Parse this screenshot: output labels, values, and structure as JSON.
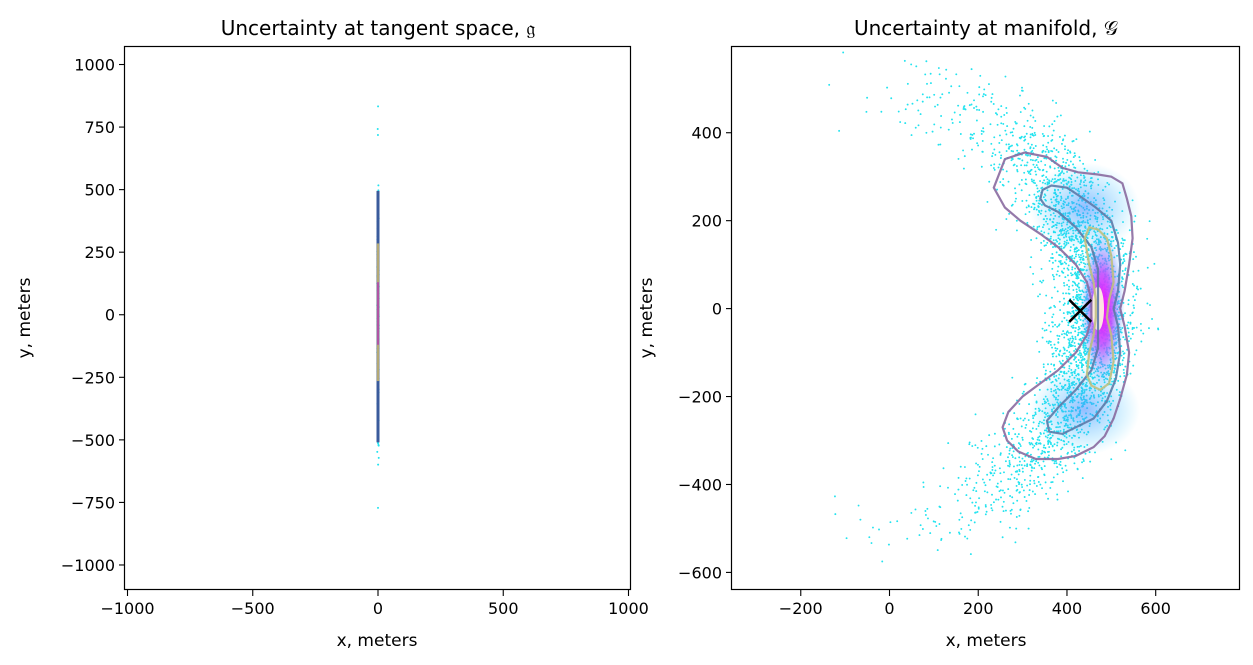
{
  "chart_data": [
    {
      "type": "scatter",
      "title": "Uncertainty at tangent space, 𝔤",
      "xlabel": "x, meters",
      "ylabel": "y, meters",
      "xlim": [
        -1010,
        1010
      ],
      "ylim": [
        -1100,
        1070
      ],
      "xticks": [
        -1000,
        -500,
        0,
        500,
        1000
      ],
      "yticks": [
        -1000,
        -750,
        -500,
        -250,
        0,
        250,
        500,
        750,
        1000
      ],
      "xtick_labels": [
        "−1000",
        "−500",
        "0",
        "500",
        "1000"
      ],
      "ytick_labels": [
        "−1000",
        "−750",
        "−500",
        "−250",
        "0",
        "250",
        "500",
        "750",
        "1000"
      ],
      "grid": false,
      "series": [
        {
          "kind": "scatter",
          "x": 0,
          "y_range": [
            -960,
            930
          ],
          "color": "#22e3ef"
        },
        {
          "kind": "density-contour",
          "x": 0,
          "y_extent": [
            -510,
            495
          ],
          "color": "#3a5b9c"
        },
        {
          "kind": "density-contour",
          "x": 0,
          "y_extent": [
            -265,
            285
          ],
          "color": "#b3a875"
        },
        {
          "kind": "density-core",
          "x": 0,
          "y_extent": [
            -120,
            130
          ],
          "color": "#b040b0"
        }
      ]
    },
    {
      "type": "scatter",
      "title": "Uncertainty at manifold, 𝒢",
      "xlabel": "x, meters",
      "ylabel": "y, meters",
      "xlim": [
        -355,
        790
      ],
      "ylim": [
        -640,
        595
      ],
      "xticks": [
        -200,
        0,
        200,
        400,
        600
      ],
      "yticks": [
        -600,
        -400,
        -200,
        0,
        200,
        400
      ],
      "xtick_labels": [
        "−200",
        "0",
        "200",
        "400",
        "600"
      ],
      "ytick_labels": [
        "−600",
        "−400",
        "−200",
        "0",
        "200",
        "400"
      ],
      "grid": false,
      "marker": {
        "symbol": "x",
        "x": 430,
        "y": -5,
        "color": "#000000"
      },
      "scatter_shape": "crescent",
      "scatter_color": "#22e3ef",
      "contours": [
        {
          "level": "outer",
          "color": "#8a6aa0",
          "points": [
            [
              235,
              275
            ],
            [
              260,
              340
            ],
            [
              305,
              355
            ],
            [
              355,
              345
            ],
            [
              390,
              320
            ],
            [
              425,
              310
            ],
            [
              470,
              305
            ],
            [
              500,
              300
            ],
            [
              525,
              285
            ],
            [
              535,
              250
            ],
            [
              545,
              210
            ],
            [
              548,
              160
            ],
            [
              540,
              100
            ],
            [
              530,
              40
            ],
            [
              520,
              0
            ],
            [
              530,
              -40
            ],
            [
              540,
              -100
            ],
            [
              535,
              -150
            ],
            [
              520,
              -205
            ],
            [
              505,
              -250
            ],
            [
              485,
              -290
            ],
            [
              460,
              -315
            ],
            [
              420,
              -335
            ],
            [
              380,
              -342
            ],
            [
              330,
              -342
            ],
            [
              290,
              -325
            ],
            [
              265,
              -300
            ],
            [
              255,
              -270
            ],
            [
              268,
              -235
            ],
            [
              300,
              -200
            ],
            [
              340,
              -170
            ],
            [
              380,
              -140
            ],
            [
              420,
              -100
            ],
            [
              445,
              -60
            ],
            [
              455,
              -20
            ],
            [
              455,
              20
            ],
            [
              445,
              60
            ],
            [
              420,
              100
            ],
            [
              380,
              140
            ],
            [
              340,
              170
            ],
            [
              295,
              200
            ],
            [
              260,
              230
            ],
            [
              235,
              275
            ]
          ]
        },
        {
          "level": "mid",
          "color": "#5d7aa8",
          "points": [
            [
              340,
              250
            ],
            [
              345,
              270
            ],
            [
              365,
              280
            ],
            [
              400,
              275
            ],
            [
              430,
              255
            ],
            [
              465,
              230
            ],
            [
              500,
              200
            ],
            [
              515,
              150
            ],
            [
              520,
              100
            ],
            [
              515,
              40
            ],
            [
              505,
              0
            ],
            [
              515,
              -40
            ],
            [
              520,
              -100
            ],
            [
              510,
              -160
            ],
            [
              490,
              -210
            ],
            [
              460,
              -250
            ],
            [
              420,
              -270
            ],
            [
              390,
              -285
            ],
            [
              360,
              -280
            ],
            [
              355,
              -255
            ],
            [
              380,
              -225
            ],
            [
              420,
              -185
            ],
            [
              455,
              -140
            ],
            [
              470,
              -90
            ],
            [
              470,
              -40
            ],
            [
              470,
              40
            ],
            [
              470,
              90
            ],
            [
              455,
              140
            ],
            [
              420,
              185
            ],
            [
              380,
              220
            ],
            [
              350,
              235
            ],
            [
              340,
              250
            ]
          ]
        },
        {
          "level": "inner",
          "color": "#c0c080",
          "points": [
            [
              440,
              160
            ],
            [
              450,
              185
            ],
            [
              470,
              180
            ],
            [
              490,
              160
            ],
            [
              500,
              120
            ],
            [
              505,
              60
            ],
            [
              495,
              20
            ],
            [
              490,
              -20
            ],
            [
              500,
              -60
            ],
            [
              505,
              -120
            ],
            [
              495,
              -170
            ],
            [
              475,
              -185
            ],
            [
              455,
              -175
            ],
            [
              445,
              -150
            ],
            [
              450,
              -100
            ],
            [
              460,
              -60
            ],
            [
              465,
              -20
            ],
            [
              465,
              20
            ],
            [
              460,
              60
            ],
            [
              450,
              100
            ],
            [
              440,
              160
            ]
          ]
        }
      ],
      "density_core": {
        "x": 490,
        "y": 0,
        "color": "#ff00ff"
      }
    }
  ]
}
